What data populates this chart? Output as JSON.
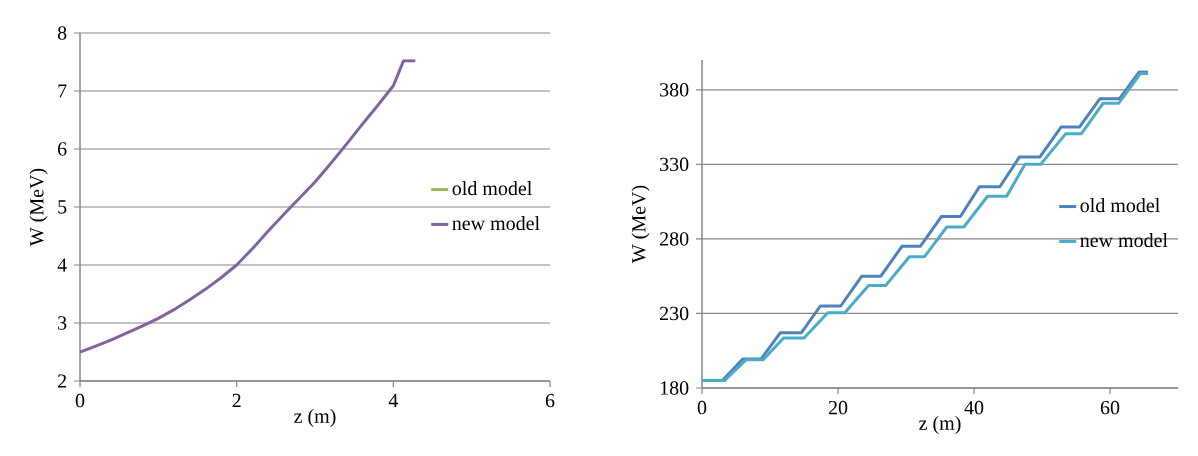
{
  "chart_data": [
    {
      "type": "line",
      "xlabel": "z (m)",
      "ylabel": "W (MeV)",
      "xlim": [
        0,
        6
      ],
      "ylim": [
        2,
        8
      ],
      "xticks": [
        0,
        2,
        4,
        6
      ],
      "yticks": [
        2,
        3,
        4,
        5,
        6,
        7,
        8
      ],
      "grid": "y",
      "legend": "right",
      "series": [
        {
          "name": "old model",
          "color": "#9bbb59"
        },
        {
          "name": "new model",
          "color": "#8064a2",
          "x": [
            0,
            0.2,
            0.4,
            0.6,
            0.8,
            1.0,
            1.2,
            1.4,
            1.6,
            1.8,
            2.0,
            2.2,
            2.4,
            2.6,
            2.8,
            3.0,
            3.2,
            3.4,
            3.6,
            3.8,
            4.0,
            4.13,
            4.28
          ],
          "values": [
            2.5,
            2.6,
            2.71,
            2.83,
            2.95,
            3.08,
            3.23,
            3.4,
            3.58,
            3.78,
            4.0,
            4.28,
            4.58,
            4.87,
            5.15,
            5.43,
            5.75,
            6.08,
            6.42,
            6.75,
            7.09,
            7.52,
            7.52
          ]
        }
      ]
    },
    {
      "type": "line",
      "xlabel": "z (m)",
      "ylabel": "W (MeV)",
      "xlim": [
        0,
        70
      ],
      "ylim": [
        180,
        400
      ],
      "xticks": [
        0,
        20,
        40,
        60
      ],
      "yticks": [
        180,
        230,
        280,
        330,
        380
      ],
      "grid": "y",
      "legend": "right",
      "series": [
        {
          "name": "old model",
          "color": "#4f81bd",
          "x": [
            0,
            3,
            6,
            8.7,
            11.5,
            14.6,
            17.4,
            20.4,
            23.5,
            26.3,
            29.4,
            32.1,
            35.2,
            38,
            40.8,
            43.8,
            46.7,
            49.7,
            52.8,
            55.5,
            58.5,
            61.4,
            64.3,
            65.6
          ],
          "values": [
            185,
            185,
            199.5,
            199.5,
            217,
            217,
            235,
            235,
            255,
            255,
            275,
            275,
            295,
            295,
            315,
            315,
            335,
            335,
            355,
            355,
            374,
            374,
            392,
            392
          ]
        },
        {
          "name": "new model",
          "color": "#4bacc6",
          "x": [
            0,
            3.3,
            6.5,
            9,
            12,
            15,
            18.5,
            21,
            24.5,
            27,
            30.5,
            32.7,
            36,
            38.5,
            42,
            44.8,
            47.5,
            49.8,
            53.5,
            55.8,
            59,
            61.3,
            64.5,
            65.6
          ],
          "values": [
            185,
            185,
            199,
            199,
            213.5,
            213.5,
            230.5,
            230.5,
            248.7,
            248.7,
            268,
            268,
            288,
            288,
            308.6,
            308.6,
            330,
            330,
            350.6,
            350.6,
            371,
            371,
            391,
            391
          ]
        }
      ]
    }
  ]
}
